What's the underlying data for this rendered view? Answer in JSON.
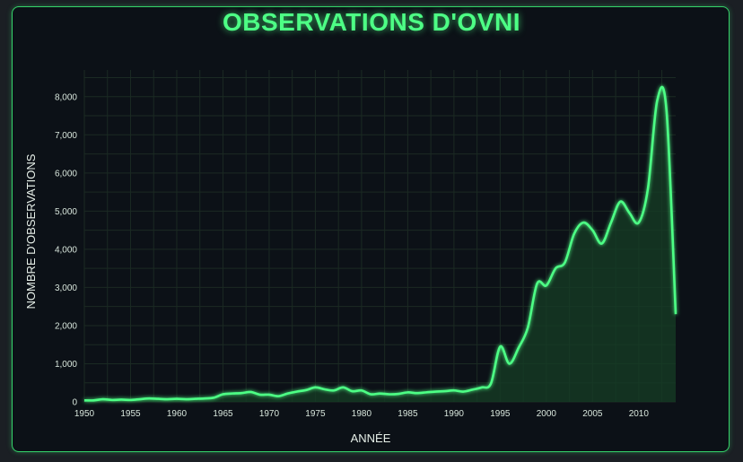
{
  "title": "OBSERVATIONS D'OVNI",
  "colors": {
    "accent": "#4dff85",
    "background": "#0c1117",
    "area_fill": "#163d26"
  },
  "chart_data": {
    "type": "area",
    "title": "OBSERVATIONS D'OVNI",
    "xlabel": "ANNÉE",
    "ylabel": "NOMBRE D'OBSERVATIONS",
    "xlim": [
      1950,
      2014
    ],
    "ylim": [
      0,
      8700
    ],
    "x_ticks": [
      "1950",
      "1955",
      "1960",
      "1965",
      "1970",
      "1975",
      "1980",
      "1985",
      "1990",
      "1995",
      "2000",
      "2005",
      "2010"
    ],
    "y_ticks": [
      "0",
      "1,000",
      "2,000",
      "3,000",
      "4,000",
      "5,000",
      "6,000",
      "7,000",
      "8,000"
    ],
    "grid": true,
    "legend": "none",
    "x": [
      1950,
      1951,
      1952,
      1953,
      1954,
      1955,
      1956,
      1957,
      1958,
      1959,
      1960,
      1961,
      1962,
      1963,
      1964,
      1965,
      1966,
      1967,
      1968,
      1969,
      1970,
      1971,
      1972,
      1973,
      1974,
      1975,
      1976,
      1977,
      1978,
      1979,
      1980,
      1981,
      1982,
      1983,
      1984,
      1985,
      1986,
      1987,
      1988,
      1989,
      1990,
      1991,
      1992,
      1993,
      1994,
      1995,
      1996,
      1997,
      1998,
      1999,
      2000,
      2001,
      2002,
      2003,
      2004,
      2005,
      2006,
      2007,
      2008,
      2009,
      2010,
      2011,
      2012,
      2013,
      2014
    ],
    "values": [
      40,
      40,
      70,
      50,
      60,
      50,
      70,
      90,
      80,
      70,
      80,
      70,
      80,
      90,
      110,
      200,
      220,
      230,
      260,
      190,
      190,
      150,
      220,
      270,
      310,
      380,
      330,
      300,
      380,
      280,
      300,
      200,
      220,
      200,
      210,
      250,
      230,
      250,
      270,
      280,
      300,
      270,
      320,
      380,
      480,
      1450,
      1000,
      1420,
      1950,
      3100,
      3050,
      3500,
      3650,
      4400,
      4700,
      4500,
      4150,
      4700,
      5250,
      4950,
      4700,
      5600,
      7900,
      7650,
      2300
    ]
  }
}
